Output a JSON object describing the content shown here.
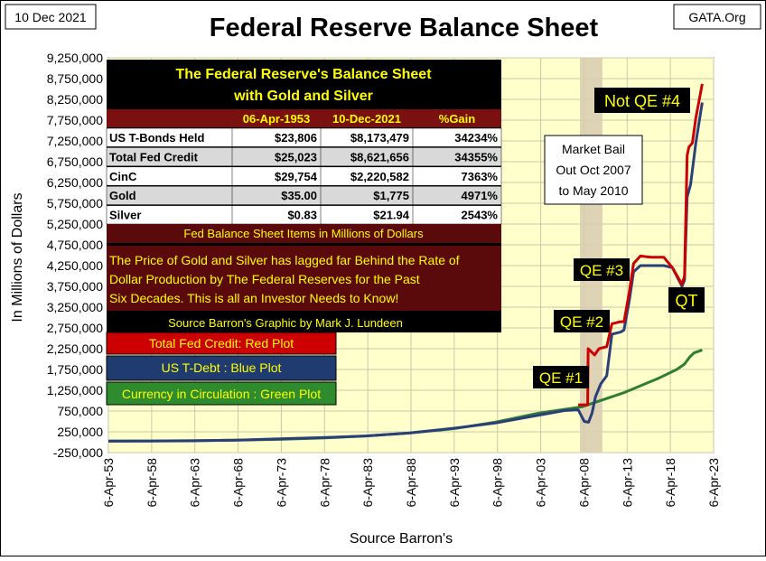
{
  "header": {
    "date": "10 Dec 2021",
    "title": "Federal Reserve Balance Sheet",
    "source_tag": "GATA.Org"
  },
  "info_box": {
    "heading_line1": "The Federal Reserve's Balance Sheet",
    "heading_line2": "with Gold and Silver",
    "columns": [
      "06-Apr-1953",
      "10-Dec-2021",
      "%Gain"
    ],
    "rows": [
      {
        "label": "US T-Bonds Held",
        "c1": "$23,806",
        "c2": "$8,173,479",
        "c3": "34234%"
      },
      {
        "label": "Total Fed Credit",
        "c1": "$25,023",
        "c2": "$8,621,656",
        "c3": "34355%"
      },
      {
        "label": "CinC",
        "c1": "$29,754",
        "c2": "$2,220,582",
        "c3": "7363%"
      },
      {
        "label": "Gold",
        "c1": "$35.00",
        "c2": "$1,775",
        "c3": "4971%"
      },
      {
        "label": "Silver",
        "c1": "$0.83",
        "c2": "$21.94",
        "c3": "2543%"
      }
    ],
    "items_note": "Fed Balance Sheet Items in Millions of Dollars",
    "paragraph_lines": [
      "The Price of Gold and Silver has lagged far Behind the Rate of",
      "Dollar Production by The Federal Reserves for the Past",
      "Six Decades.  This is all an Investor Needs to Know!"
    ],
    "credit": "Source Barron's    Graphic by Mark J. Lundeen"
  },
  "legend": [
    {
      "label": "Total Fed Credit: Red Plot",
      "bg": "#cc0000",
      "fg": "#ffff00"
    },
    {
      "label": "US T-Debt : Blue Plot",
      "bg": "#1f3b70",
      "fg": "#ffff00"
    },
    {
      "label": "Currency in Circulation : Green Plot",
      "bg": "#2e8b2e",
      "fg": "#ffff00"
    }
  ],
  "annotations": {
    "market_bail": [
      "Market Bail",
      "Out Oct 2007",
      "to May 2010"
    ],
    "qe1": "QE #1",
    "qe2": "QE #2",
    "qe3": "QE #3",
    "qt": "QT",
    "not_qe4": "Not QE #4"
  },
  "colors": {
    "plot_bg": "#ffffcc",
    "bail_band": "#d8cdb0",
    "info_bg": "#000000",
    "info_heading": "#ffff00",
    "table_header_bg": "#7a1010",
    "note_bg": "#5a0a0a",
    "red": "#cc0000",
    "blue": "#2a3f7a",
    "green": "#2e7d32"
  },
  "chart_data": {
    "type": "line",
    "ylabel": "In  Millions  of  Dollars",
    "xlabel": "Source Barron's",
    "ylim": [
      -250000,
      9250000
    ],
    "yticks": [
      -250000,
      250000,
      750000,
      1250000,
      1750000,
      2250000,
      2750000,
      3250000,
      3750000,
      4250000,
      4750000,
      5250000,
      5750000,
      6250000,
      6750000,
      7250000,
      7750000,
      8250000,
      8750000,
      9250000
    ],
    "ytick_labels": [
      "-250,000",
      "250,000",
      "750,000",
      "1,250,000",
      "1,750,000",
      "2,250,000",
      "2,750,000",
      "3,250,000",
      "3,750,000",
      "4,250,000",
      "4,750,000",
      "5,250,000",
      "5,750,000",
      "6,250,000",
      "6,750,000",
      "7,250,000",
      "7,750,000",
      "8,250,000",
      "8,750,000",
      "9,250,000"
    ],
    "xlim": [
      1953.26,
      2023.26
    ],
    "xticks": [
      1953.26,
      1958.26,
      1963.26,
      1968.26,
      1973.26,
      1978.26,
      1983.26,
      1988.26,
      1993.26,
      1998.26,
      2003.26,
      2008.26,
      2013.26,
      2018.26,
      2023.26
    ],
    "xtick_labels": [
      "6-Apr-53",
      "6-Apr-58",
      "6-Apr-63",
      "6-Apr-68",
      "6-Apr-73",
      "6-Apr-78",
      "6-Apr-83",
      "6-Apr-88",
      "6-Apr-93",
      "6-Apr-98",
      "6-Apr-03",
      "6-Apr-08",
      "6-Apr-13",
      "6-Apr-18",
      "6-Apr-23"
    ],
    "grid": true,
    "bail_band": [
      2007.8,
      2010.4
    ],
    "series": [
      {
        "name": "Total Fed Credit: Red Plot",
        "color": "#cc0000",
        "x": [
          2007.6,
          2008.7,
          2008.75,
          2009.5,
          2010.0,
          2010.9,
          2011.5,
          2012.5,
          2012.9,
          2013.5,
          2014.0,
          2014.8,
          2016.0,
          2017.5,
          2018.5,
          2019.6,
          2019.9,
          2020.2,
          2020.4,
          2020.8,
          2021.2,
          2021.94
        ],
        "y": [
          900000,
          900000,
          2250000,
          2100000,
          2250000,
          2300000,
          2850000,
          2900000,
          2900000,
          3600000,
          4300000,
          4480000,
          4450000,
          4450000,
          4200000,
          3800000,
          4000000,
          6900000,
          7100000,
          7200000,
          7800000,
          8621656
        ]
      },
      {
        "name": "US T-Debt : Blue Plot",
        "color": "#2a3f7a",
        "x": [
          1953.26,
          1958,
          1963,
          1968,
          1973,
          1978,
          1983,
          1988,
          1993,
          1998,
          2003,
          2006,
          2007.6,
          2008.3,
          2008.8,
          2009.2,
          2009.6,
          2010.2,
          2010.9,
          2011.5,
          2012.5,
          2012.9,
          2013.5,
          2014.0,
          2014.8,
          2016.0,
          2017.5,
          2018.5,
          2019.6,
          2019.9,
          2020.2,
          2020.6,
          2021.2,
          2021.94
        ],
        "y": [
          24000,
          26000,
          32000,
          50000,
          80000,
          110000,
          150000,
          220000,
          330000,
          460000,
          650000,
          760000,
          780000,
          500000,
          480000,
          700000,
          1100000,
          1400000,
          1600000,
          2600000,
          2650000,
          2700000,
          3400000,
          4100000,
          4250000,
          4250000,
          4250000,
          4200000,
          3750000,
          3900000,
          5900000,
          6200000,
          7200000,
          8173479
        ]
      },
      {
        "name": "Currency in Circulation : Green Plot",
        "color": "#2e7d32",
        "x": [
          1953.26,
          1958,
          1963,
          1968,
          1973,
          1978,
          1983,
          1988,
          1993,
          1998,
          2003,
          2008,
          2013,
          2017,
          2019,
          2019.9,
          2020.5,
          2021.0,
          2021.94
        ],
        "y": [
          29754,
          31000,
          36000,
          48000,
          68000,
          100000,
          150000,
          220000,
          320000,
          480000,
          700000,
          850000,
          1200000,
          1550000,
          1750000,
          1880000,
          2050000,
          2150000,
          2220582
        ]
      }
    ]
  }
}
